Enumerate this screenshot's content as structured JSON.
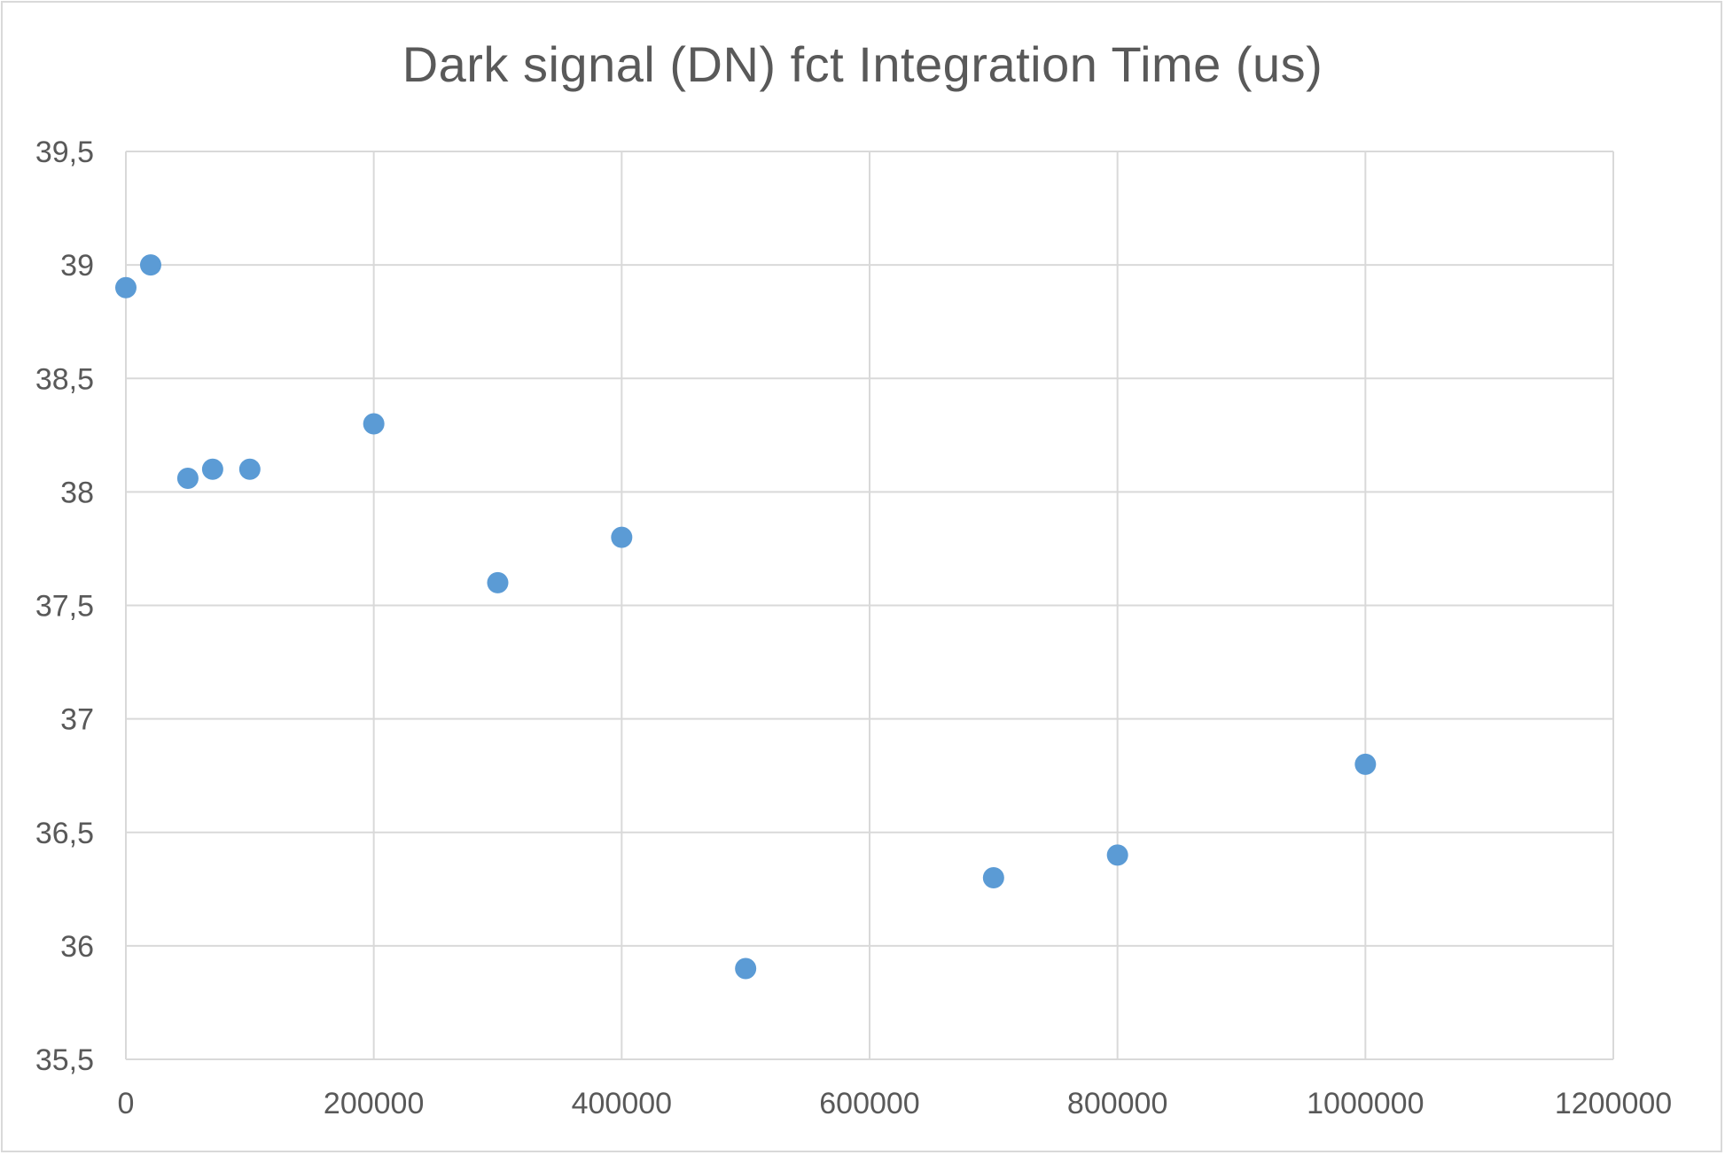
{
  "chart_data": {
    "type": "scatter",
    "title": "Dark signal (DN) fct Integration Time (us)",
    "xlabel": "",
    "ylabel": "",
    "xlim": [
      0,
      1200000
    ],
    "ylim": [
      35.5,
      39.5
    ],
    "x_ticks": [
      0,
      200000,
      400000,
      600000,
      800000,
      1000000,
      1200000
    ],
    "x_tick_labels": [
      "0",
      "200000",
      "400000",
      "600000",
      "800000",
      "1000000",
      "1200000"
    ],
    "y_ticks": [
      35.5,
      36,
      36.5,
      37,
      37.5,
      38,
      38.5,
      39,
      39.5
    ],
    "y_tick_labels": [
      "35,5",
      "36",
      "36,5",
      "37",
      "37,5",
      "38",
      "38,5",
      "39",
      "39,5"
    ],
    "grid": true,
    "legend": "none",
    "series": [
      {
        "color": "#5b9bd5",
        "points": [
          {
            "x": 0,
            "y": 38.9
          },
          {
            "x": 20000,
            "y": 39.0
          },
          {
            "x": 50000,
            "y": 38.06
          },
          {
            "x": 70000,
            "y": 38.1
          },
          {
            "x": 100000,
            "y": 38.1
          },
          {
            "x": 200000,
            "y": 38.3
          },
          {
            "x": 300000,
            "y": 37.6
          },
          {
            "x": 400000,
            "y": 37.8
          },
          {
            "x": 500000,
            "y": 35.9
          },
          {
            "x": 700000,
            "y": 36.3
          },
          {
            "x": 800000,
            "y": 36.4
          },
          {
            "x": 1000000,
            "y": 36.8
          }
        ]
      }
    ],
    "colors": {
      "gridline": "#d9d9d9",
      "text": "#595959"
    }
  }
}
